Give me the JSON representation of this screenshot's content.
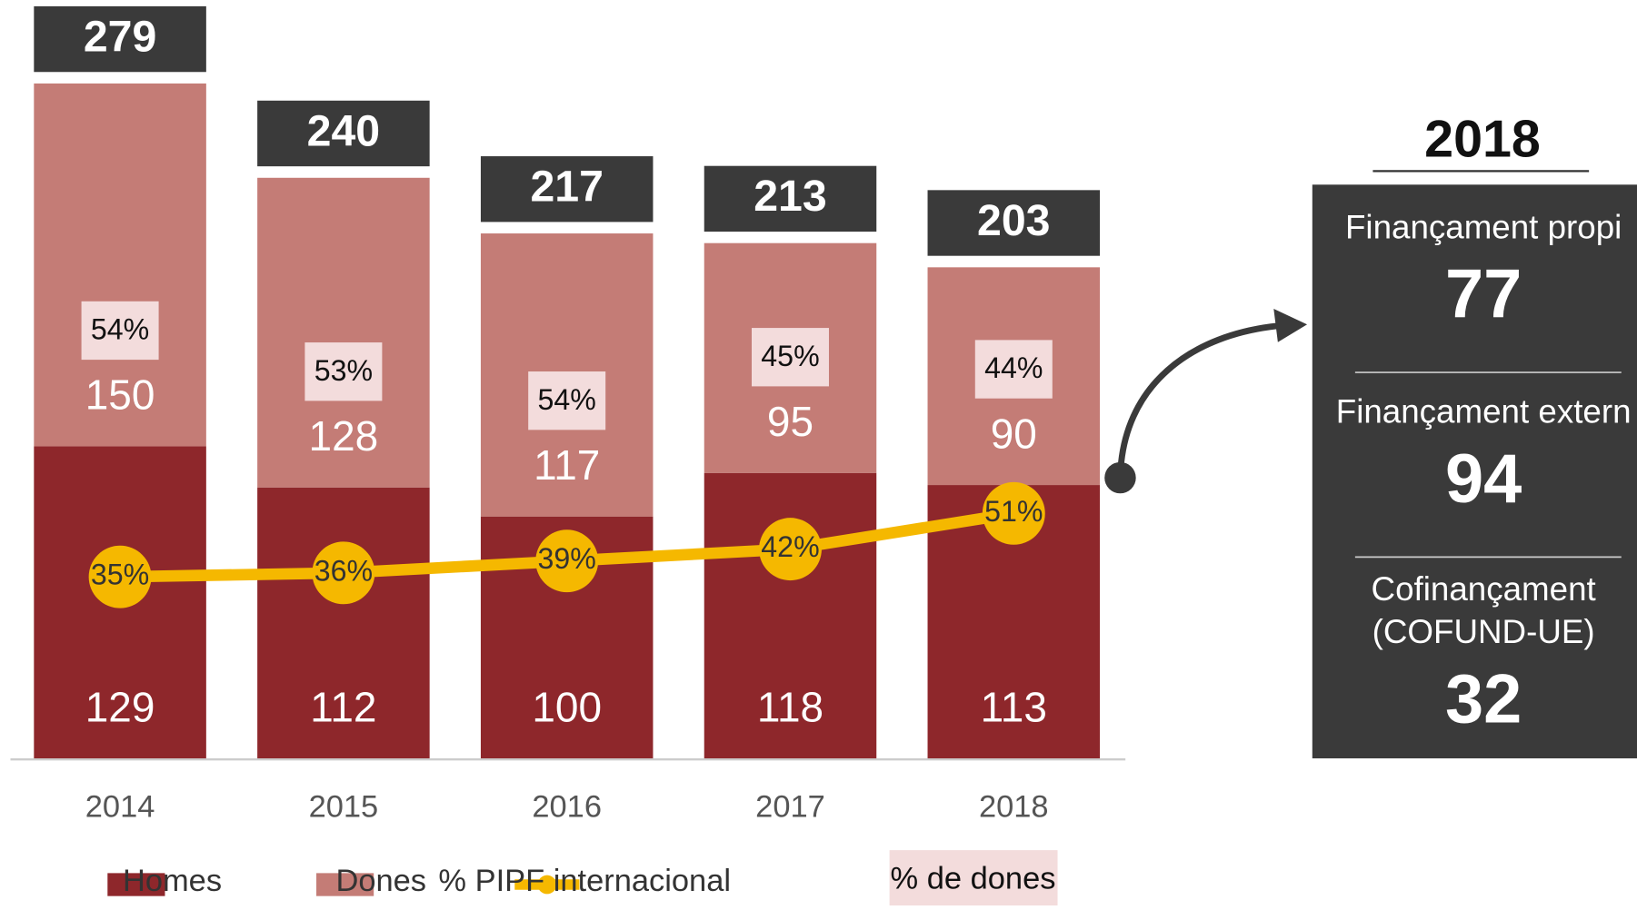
{
  "chart_data": {
    "type": "stacked_bar",
    "categories": [
      "2014",
      "2015",
      "2016",
      "2017",
      "2018"
    ],
    "series": [
      {
        "name": "Homes",
        "color": "#8e272b",
        "values": [
          129,
          112,
          100,
          118,
          113
        ]
      },
      {
        "name": "Dones",
        "color": "#c47c76",
        "values": [
          150,
          128,
          117,
          95,
          90
        ]
      }
    ],
    "totals": [
      279,
      240,
      217,
      213,
      203
    ],
    "women_share": {
      "name": "% de dones",
      "color": "#f3dcdc",
      "values": [
        54,
        53,
        54,
        45,
        44
      ],
      "value_labels": [
        "54%",
        "53%",
        "54%",
        "45%",
        "44%"
      ]
    },
    "line": {
      "name": "% PIPF internacional",
      "color": "#f5b800",
      "values": [
        35,
        36,
        39,
        42,
        51
      ],
      "value_labels": [
        "35%",
        "36%",
        "39%",
        "42%",
        "51%"
      ]
    }
  },
  "side_panel": {
    "title": "2018",
    "items": [
      {
        "label": [
          "Finançament propi"
        ],
        "value": 77
      },
      {
        "label": [
          "Finançament extern"
        ],
        "value": 94
      },
      {
        "label": [
          "Cofinançament",
          "(COFUND-UE)"
        ],
        "value": 32
      }
    ]
  }
}
